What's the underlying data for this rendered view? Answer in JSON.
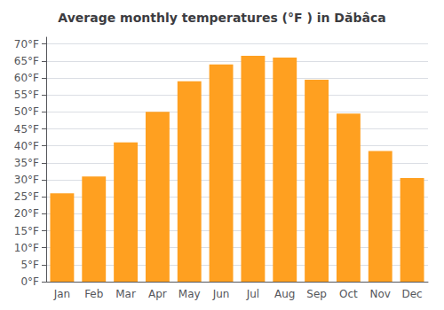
{
  "chart_data": {
    "type": "bar",
    "title": "Average monthly temperatures (°F ) in Dăbâca",
    "categories": [
      "Jan",
      "Feb",
      "Mar",
      "Apr",
      "May",
      "Jun",
      "Jul",
      "Aug",
      "Sep",
      "Oct",
      "Nov",
      "Dec"
    ],
    "values": [
      26.0,
      31.0,
      41.0,
      50.0,
      59.0,
      64.0,
      66.5,
      66.0,
      59.5,
      49.5,
      38.5,
      30.5
    ],
    "color": "#FFA020",
    "ylim": [
      0,
      72
    ],
    "yticks": [
      {
        "value": 0,
        "label": "0°F"
      },
      {
        "value": 5,
        "label": "5°F"
      },
      {
        "value": 10,
        "label": "10°F"
      },
      {
        "value": 15,
        "label": "15°F"
      },
      {
        "value": 20,
        "label": "20°F"
      },
      {
        "value": 25,
        "label": "25°F"
      },
      {
        "value": 30,
        "label": "30°F"
      },
      {
        "value": 35,
        "label": "35°F"
      },
      {
        "value": 40,
        "label": "40°F"
      },
      {
        "value": 45,
        "label": "45°F"
      },
      {
        "value": 50,
        "label": "50°F"
      },
      {
        "value": 55,
        "label": "55°F"
      },
      {
        "value": 60,
        "label": "60°F"
      },
      {
        "value": 65,
        "label": "65°F"
      },
      {
        "value": 70,
        "label": "70°F"
      }
    ],
    "grid": true
  }
}
